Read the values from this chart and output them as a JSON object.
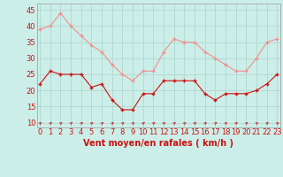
{
  "hours": [
    0,
    1,
    2,
    3,
    4,
    5,
    6,
    7,
    8,
    9,
    10,
    11,
    12,
    13,
    14,
    15,
    16,
    17,
    18,
    19,
    20,
    21,
    22,
    23
  ],
  "wind_avg": [
    22,
    26,
    25,
    25,
    25,
    21,
    22,
    17,
    14,
    14,
    19,
    19,
    23,
    23,
    23,
    23,
    19,
    17,
    19,
    19,
    19,
    20,
    22,
    25
  ],
  "wind_gust": [
    39,
    40,
    44,
    40,
    37,
    34,
    32,
    28,
    25,
    23,
    26,
    26,
    32,
    36,
    35,
    35,
    32,
    30,
    28,
    26,
    26,
    30,
    35,
    36
  ],
  "bg_color": "#cceee8",
  "grid_color": "#aad4ce",
  "avg_color": "#cc1111",
  "gust_color": "#f09090",
  "xlabel": "Vent moyen/en rafales ( km/h )",
  "ylabel_ticks": [
    10,
    15,
    20,
    25,
    30,
    35,
    40,
    45
  ],
  "ylim": [
    8.5,
    47
  ],
  "xlim": [
    -0.3,
    23.3
  ],
  "axis_fontsize": 7,
  "tick_fontsize": 6
}
